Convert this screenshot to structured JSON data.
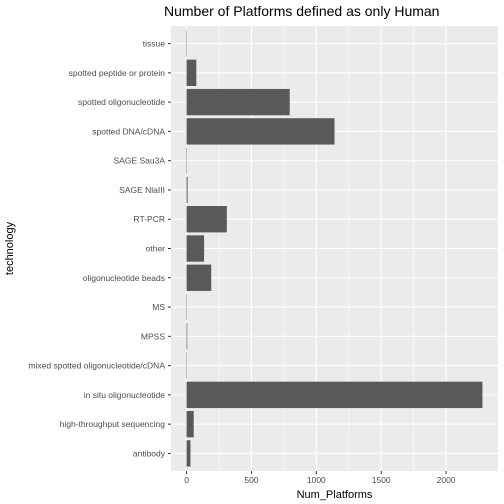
{
  "chart_data": {
    "type": "bar",
    "orientation": "horizontal",
    "title": "Number of Platforms defined as only Human",
    "xlabel": "Num_Platforms",
    "ylabel": "technology",
    "categories": [
      "antibody",
      "high-throughput sequencing",
      "in situ oligonucleotide",
      "mixed spotted oligonucleotide/cDNA",
      "MPSS",
      "MS",
      "oligonucleotide beads",
      "other",
      "RT-PCR",
      "SAGE NlaIII",
      "SAGE Sau3A",
      "spotted DNA/cDNA",
      "spotted oligonucleotide",
      "spotted peptide or protein",
      "tissue"
    ],
    "values": [
      30,
      55,
      2280,
      3,
      5,
      1,
      190,
      135,
      310,
      8,
      1,
      1140,
      795,
      75,
      1
    ],
    "xlim": [
      -120,
      2400
    ],
    "xticks": [
      0,
      500,
      1000,
      1500,
      2000
    ],
    "xtick_labels": [
      "0",
      "500",
      "1000",
      "1500",
      "2000"
    ],
    "grid": true,
    "background_color": "#ebebeb",
    "gridline_color": "#ffffff",
    "bar_color": "#595959"
  }
}
